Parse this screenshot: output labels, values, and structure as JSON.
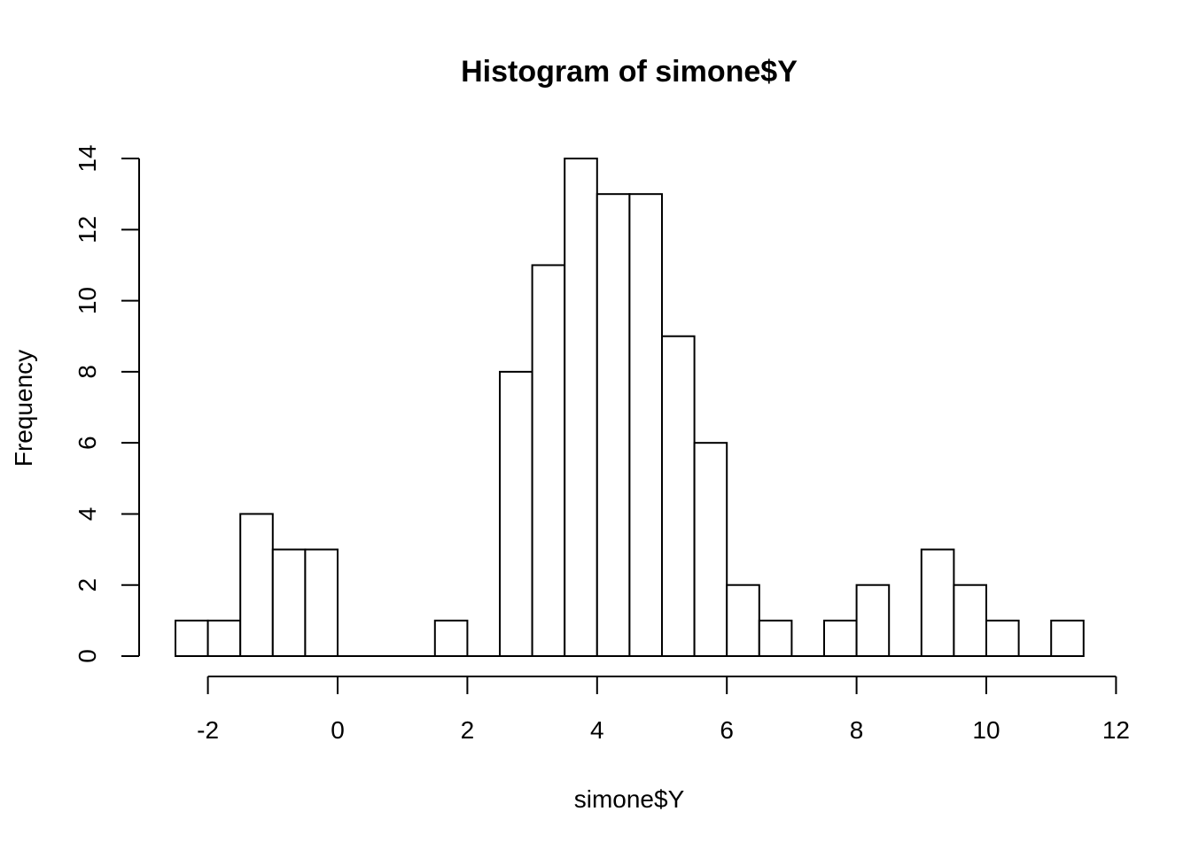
{
  "chart_data": {
    "type": "bar",
    "title": "Histogram of simone$Y",
    "xlabel": "simone$Y",
    "ylabel": "Frequency",
    "bin_width": 0.5,
    "bin_start": -2.5,
    "values": [
      1,
      1,
      4,
      3,
      3,
      0,
      0,
      0,
      1,
      0,
      8,
      11,
      14,
      13,
      13,
      9,
      6,
      2,
      1,
      0,
      1,
      2,
      0,
      3,
      2,
      1,
      0,
      1
    ],
    "xlim": [
      -2,
      12
    ],
    "ylim": [
      0,
      14
    ],
    "x_ticks": [
      "-2",
      "0",
      "2",
      "4",
      "6",
      "8",
      "10",
      "12"
    ],
    "y_ticks": [
      "0",
      "2",
      "4",
      "6",
      "8",
      "10",
      "12",
      "14"
    ],
    "grid": false,
    "bar_fill": "#ffffff",
    "bar_stroke": "#000000"
  }
}
